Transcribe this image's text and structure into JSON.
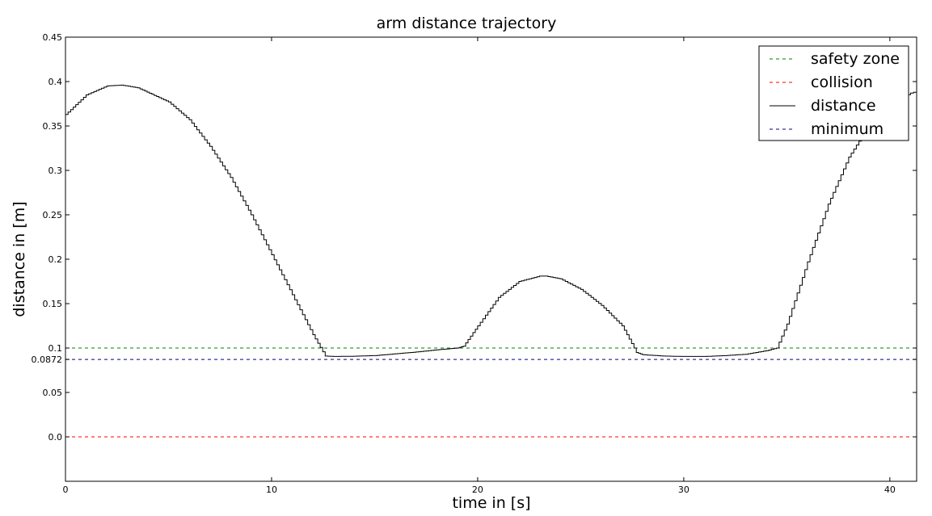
{
  "chart_data": {
    "type": "line",
    "title": "arm distance trajectory",
    "xlabel": "time in [s]",
    "ylabel": "distance in [m]",
    "xlim": [
      0,
      41.3
    ],
    "ylim": [
      -0.05,
      0.45
    ],
    "x_ticks": [
      0,
      10,
      20,
      30,
      40
    ],
    "x_tick_labels": [
      "0",
      "10",
      "20",
      "30",
      "40"
    ],
    "y_ticks": [
      0.0,
      0.05,
      0.0872,
      0.1,
      0.15,
      0.2,
      0.25,
      0.3,
      0.35,
      0.4,
      0.45
    ],
    "y_tick_labels": [
      "0.0",
      "0.05",
      "0.0872",
      "0.1",
      "0.15",
      "0.2",
      "0.25",
      "0.3",
      "0.35",
      "0.4",
      "0.45"
    ],
    "grid": false,
    "legend_position": "top-right",
    "series": [
      {
        "name": "safety zone",
        "style": "dashed",
        "color": "#008000",
        "x": [
          0,
          41.3
        ],
        "y": [
          0.1,
          0.1
        ]
      },
      {
        "name": "collision",
        "style": "dashed",
        "color": "#ff0000",
        "x": [
          0,
          41.3
        ],
        "y": [
          0.0,
          0.0
        ]
      },
      {
        "name": "distance",
        "style": "solid",
        "color": "#000000",
        "x": [
          0,
          1,
          2,
          2.7,
          3.5,
          5,
          6,
          7,
          8,
          9,
          10,
          11,
          12,
          12.6,
          13,
          14,
          15,
          16,
          17,
          18,
          19,
          19.3,
          20,
          21,
          22,
          23,
          23.3,
          24,
          25,
          26,
          27,
          27.7,
          28,
          29,
          30,
          31,
          32,
          33,
          34,
          34.5,
          35,
          36,
          37,
          38,
          39,
          40,
          41,
          41.3
        ],
        "y": [
          0.363,
          0.385,
          0.395,
          0.396,
          0.393,
          0.377,
          0.357,
          0.327,
          0.292,
          0.25,
          0.205,
          0.16,
          0.115,
          0.091,
          0.0905,
          0.0908,
          0.0915,
          0.0935,
          0.0955,
          0.098,
          0.1,
          0.102,
          0.125,
          0.157,
          0.175,
          0.181,
          0.181,
          0.178,
          0.166,
          0.148,
          0.125,
          0.095,
          0.0925,
          0.091,
          0.0905,
          0.0905,
          0.0915,
          0.093,
          0.097,
          0.1,
          0.127,
          0.197,
          0.262,
          0.315,
          0.351,
          0.373,
          0.387,
          0.389
        ]
      },
      {
        "name": "minimum",
        "style": "dashed",
        "color": "#000080",
        "x": [
          0,
          41.3
        ],
        "y": [
          0.0872,
          0.0872
        ]
      }
    ]
  }
}
